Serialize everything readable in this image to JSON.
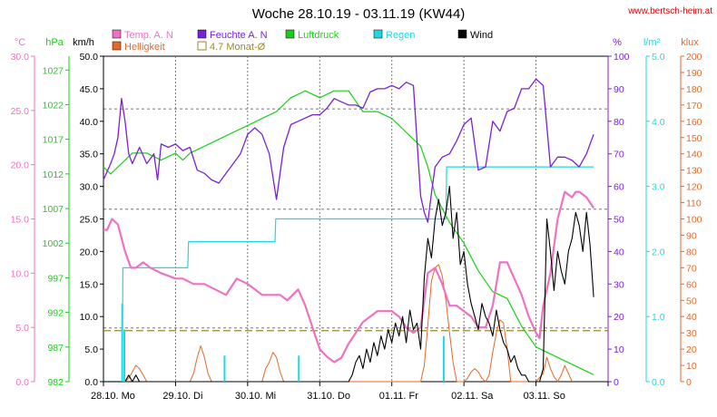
{
  "title": "Woche 28.10.19 - 03.11.19 (KW44)",
  "url": "www.bertsch-heim.at",
  "colors": {
    "temp": "#ef72c0",
    "humidity": "#7a20d8",
    "pressure": "#18d018",
    "rain": "#20d8e0",
    "wind": "#000000",
    "brightness": "#e06a28",
    "month_avg": "#9a8a30"
  },
  "legend": [
    {
      "label": "Temp. A. N",
      "color": "#ef72c0",
      "swatch": "filled"
    },
    {
      "label": "Feuchte A. N",
      "color": "#7a20d8",
      "swatch": "filled"
    },
    {
      "label": "Luftdruck",
      "color": "#18d018",
      "swatch": "filled"
    },
    {
      "label": "Regen",
      "color": "#20d8e0",
      "swatch": "filled"
    },
    {
      "label": "Wind",
      "color": "#000000",
      "swatch": "filled"
    },
    {
      "label": "Helligkeit",
      "color": "#e06a28",
      "swatch": "filled"
    },
    {
      "label": "4.7 Monat-Ø",
      "color": "#9a8a30",
      "swatch": "outline"
    }
  ],
  "axes": {
    "left_units": [
      "°C",
      "hPa",
      "km/h"
    ],
    "right_units": [
      "%",
      "l/m²",
      "klux"
    ],
    "temp_ticks": [
      "0.0",
      "5.0",
      "10.0",
      "15.0",
      "20.0",
      "25.0",
      "30.0"
    ],
    "pressure_ticks": [
      "982",
      "987",
      "992",
      "997",
      "1002",
      "1007",
      "1012",
      "1017",
      "1022",
      "1027"
    ],
    "wind_ticks": [
      "0.0",
      "5.0",
      "10.0",
      "15.0",
      "20.0",
      "25.0",
      "30.0",
      "35.0",
      "40.0",
      "45.0",
      "50.0"
    ],
    "humidity_ticks": [
      "0",
      "10",
      "20",
      "30",
      "40",
      "50",
      "60",
      "70",
      "80",
      "90",
      "100"
    ],
    "rain_ticks": [
      "0.0",
      "1.0",
      "2.0",
      "3.0",
      "4.0",
      "5.0"
    ],
    "lux_ticks": [
      "0",
      "10",
      "20",
      "30",
      "40",
      "50",
      "60",
      "70",
      "80",
      "90",
      "100",
      "110",
      "120",
      "130",
      "140",
      "150",
      "160",
      "170",
      "180",
      "190",
      "200"
    ],
    "day_labels": [
      "28.10.  Mo",
      "29.10.  Di",
      "30.10.  Mi",
      "31.10.  Do",
      "01.11.  Fr",
      "02.11.  Sa",
      "03.11.  So"
    ]
  },
  "chart_data": {
    "type": "line",
    "x_unit": "days since 28.10.19 00:00",
    "month_avg_temp": 4.7,
    "series": [
      {
        "name": "Temp. A. N",
        "axis": "°C",
        "color": "#ef72c0",
        "x": [
          0,
          0.05,
          0.12,
          0.2,
          0.3,
          0.38,
          0.45,
          0.55,
          0.65,
          0.8,
          1.0,
          1.1,
          1.25,
          1.4,
          1.55,
          1.7,
          1.85,
          2.0,
          2.1,
          2.2,
          2.3,
          2.45,
          2.55,
          2.7,
          2.8,
          2.9,
          3.0,
          3.1,
          3.2,
          3.3,
          3.4,
          3.5,
          3.6,
          3.7,
          3.8,
          3.9,
          4.0,
          4.1,
          4.2,
          4.3,
          4.4,
          4.5,
          4.6,
          4.7,
          4.8,
          4.9,
          5.0,
          5.1,
          5.2,
          5.3,
          5.4,
          5.5,
          5.6,
          5.7,
          5.8,
          5.9,
          6.0,
          6.05,
          6.1,
          6.2,
          6.3,
          6.4,
          6.5,
          6.55,
          6.6,
          6.7,
          6.75,
          6.8
        ],
        "y": [
          14,
          14,
          15,
          14.5,
          12,
          10.5,
          10.5,
          11,
          10.5,
          10,
          9.5,
          9.5,
          9,
          9,
          8.5,
          8,
          9.5,
          9,
          8.5,
          8,
          8,
          8,
          7.5,
          8.5,
          7,
          5,
          3,
          2.3,
          1.8,
          2.2,
          3.5,
          4.5,
          5.5,
          6,
          6.5,
          6.5,
          6.5,
          6,
          5,
          4.5,
          5,
          10,
          10.5,
          9,
          7,
          7,
          6.5,
          6,
          5,
          5,
          7,
          11,
          11,
          9.5,
          8,
          6,
          4.5,
          4,
          7,
          10,
          15,
          17.5,
          17,
          17.5,
          17.5,
          17,
          16.5,
          16
        ]
      },
      {
        "name": "Feuchte A. N",
        "axis": "%",
        "color": "#7a20d8",
        "x": [
          0,
          0.1,
          0.15,
          0.2,
          0.25,
          0.3,
          0.35,
          0.4,
          0.5,
          0.6,
          0.7,
          0.75,
          0.8,
          0.9,
          1.0,
          1.1,
          1.2,
          1.3,
          1.4,
          1.5,
          1.6,
          1.7,
          1.8,
          1.9,
          2.0,
          2.1,
          2.2,
          2.3,
          2.4,
          2.5,
          2.6,
          2.7,
          2.8,
          2.9,
          3.0,
          3.1,
          3.2,
          3.3,
          3.4,
          3.5,
          3.6,
          3.7,
          3.8,
          3.9,
          4.0,
          4.1,
          4.2,
          4.3,
          4.4,
          4.45,
          4.5,
          4.55,
          4.6,
          4.7,
          4.8,
          4.9,
          5.0,
          5.1,
          5.2,
          5.3,
          5.4,
          5.5,
          5.6,
          5.7,
          5.8,
          5.9,
          6.0,
          6.1,
          6.2,
          6.3,
          6.35,
          6.4,
          6.5,
          6.6,
          6.7,
          6.8
        ],
        "y": [
          62,
          67,
          70,
          75,
          87,
          80,
          70,
          67,
          72,
          67,
          70,
          62,
          73,
          72,
          73,
          71,
          72,
          65,
          64,
          62,
          61,
          64,
          67,
          70,
          76,
          78,
          76,
          70,
          56,
          72,
          79,
          80,
          81,
          82,
          82,
          84,
          87,
          86,
          85,
          85,
          84,
          89,
          90,
          90,
          91,
          90,
          92,
          91,
          57,
          52,
          49,
          58,
          66,
          69,
          70,
          74,
          79,
          81,
          65,
          66,
          80,
          77,
          83,
          84,
          90,
          90,
          93,
          91,
          66,
          69,
          69,
          69,
          68,
          66,
          70,
          76
        ]
      },
      {
        "name": "Luftdruck",
        "axis": "hPa",
        "color": "#18d018",
        "x": [
          0,
          0.1,
          0.2,
          0.4,
          0.6,
          0.8,
          1.0,
          1.1,
          1.2,
          1.4,
          1.6,
          1.8,
          2.0,
          2.2,
          2.4,
          2.6,
          2.8,
          3.0,
          3.2,
          3.4,
          3.6,
          3.8,
          4.0,
          4.2,
          4.4,
          4.5,
          4.6,
          4.8,
          5.0,
          5.2,
          5.4,
          5.6,
          5.8,
          6.0,
          6.2,
          6.4,
          6.6,
          6.8
        ],
        "y": [
          1013,
          1012,
          1013,
          1015,
          1015,
          1014,
          1015,
          1014,
          1015,
          1016,
          1017,
          1018,
          1019,
          1020,
          1021,
          1023,
          1024,
          1023,
          1024,
          1024,
          1021,
          1021,
          1020,
          1018,
          1016,
          1013,
          1009,
          1005,
          1002,
          998,
          995,
          994,
          990,
          987,
          986,
          985,
          984,
          983
        ]
      },
      {
        "name": "Regen",
        "axis": "l/m²",
        "color": "#20d8e0",
        "x": [
          0,
          0.26,
          0.27,
          1.17,
          1.18,
          2.38,
          2.39,
          3.3,
          3.31,
          4.75,
          4.76,
          6.8
        ],
        "y": [
          0,
          0,
          1.75,
          1.75,
          2.15,
          2.15,
          2.5,
          2.5,
          2.5,
          2.5,
          3.3,
          3.3
        ]
      },
      {
        "name": "Wind",
        "axis": "km/h",
        "color": "#000000",
        "x": [
          0,
          0.3,
          0.35,
          0.4,
          0.45,
          0.5,
          3.4,
          3.45,
          3.5,
          3.55,
          3.6,
          3.65,
          3.7,
          3.75,
          3.8,
          3.85,
          3.9,
          3.95,
          4.0,
          4.05,
          4.1,
          4.15,
          4.2,
          4.25,
          4.3,
          4.35,
          4.4,
          4.45,
          4.5,
          4.55,
          4.6,
          4.65,
          4.7,
          4.75,
          4.8,
          4.85,
          4.9,
          4.95,
          5.0,
          5.05,
          5.1,
          5.15,
          5.2,
          5.25,
          5.3,
          5.35,
          5.4,
          5.45,
          5.5,
          5.55,
          5.6,
          5.65,
          5.7,
          5.75,
          5.8,
          5.85,
          5.9,
          5.95,
          6.0,
          6.05,
          6.1,
          6.15,
          6.2,
          6.25,
          6.3,
          6.35,
          6.4,
          6.45,
          6.5,
          6.55,
          6.6,
          6.65,
          6.7,
          6.75,
          6.8
        ],
        "y": [
          0,
          0,
          1,
          0,
          1,
          0,
          0,
          1,
          3,
          4,
          2,
          5,
          3,
          6,
          4,
          7,
          5,
          8,
          6,
          9,
          7,
          10,
          6,
          11,
          8,
          9,
          5,
          16,
          22,
          19,
          25,
          28,
          24,
          26,
          30,
          22,
          26,
          18,
          20,
          15,
          12,
          10,
          8,
          12,
          10,
          9,
          7,
          11,
          8,
          6,
          5,
          3,
          4,
          2,
          1,
          1,
          0,
          0,
          0,
          0,
          2,
          25,
          20,
          14,
          20,
          17,
          15,
          20,
          22,
          26,
          24,
          20,
          26,
          21,
          13
        ]
      },
      {
        "name": "Helligkeit",
        "axis": "klux",
        "color": "#e06a28",
        "x": [
          0,
          0.3,
          0.35,
          0.4,
          0.45,
          0.5,
          0.55,
          0.6,
          1.2,
          1.25,
          1.3,
          1.35,
          1.4,
          1.45,
          1.5,
          2.2,
          2.25,
          2.3,
          2.35,
          2.4,
          2.45,
          2.5,
          3.0,
          4.4,
          4.45,
          4.5,
          4.55,
          4.6,
          4.65,
          4.7,
          4.75,
          4.8,
          4.85,
          4.9,
          4.95,
          5.0,
          5.05,
          5.1,
          5.15,
          5.2,
          5.25,
          5.3,
          5.35,
          5.4,
          5.45,
          5.5,
          5.55,
          5.6,
          5.65,
          6.0,
          6.1,
          6.15,
          6.2,
          6.25,
          6.3,
          6.35,
          6.4,
          6.5
        ],
        "y": [
          0,
          0,
          2,
          6,
          10,
          8,
          4,
          0,
          0,
          5,
          15,
          22,
          15,
          5,
          0,
          0,
          8,
          12,
          18,
          15,
          6,
          0,
          0,
          0,
          10,
          35,
          62,
          70,
          72,
          65,
          50,
          30,
          12,
          0,
          0,
          0,
          2,
          6,
          8,
          6,
          2,
          0,
          4,
          18,
          30,
          38,
          36,
          20,
          0,
          0,
          5,
          15,
          8,
          3,
          0,
          4,
          10,
          0
        ]
      }
    ]
  }
}
